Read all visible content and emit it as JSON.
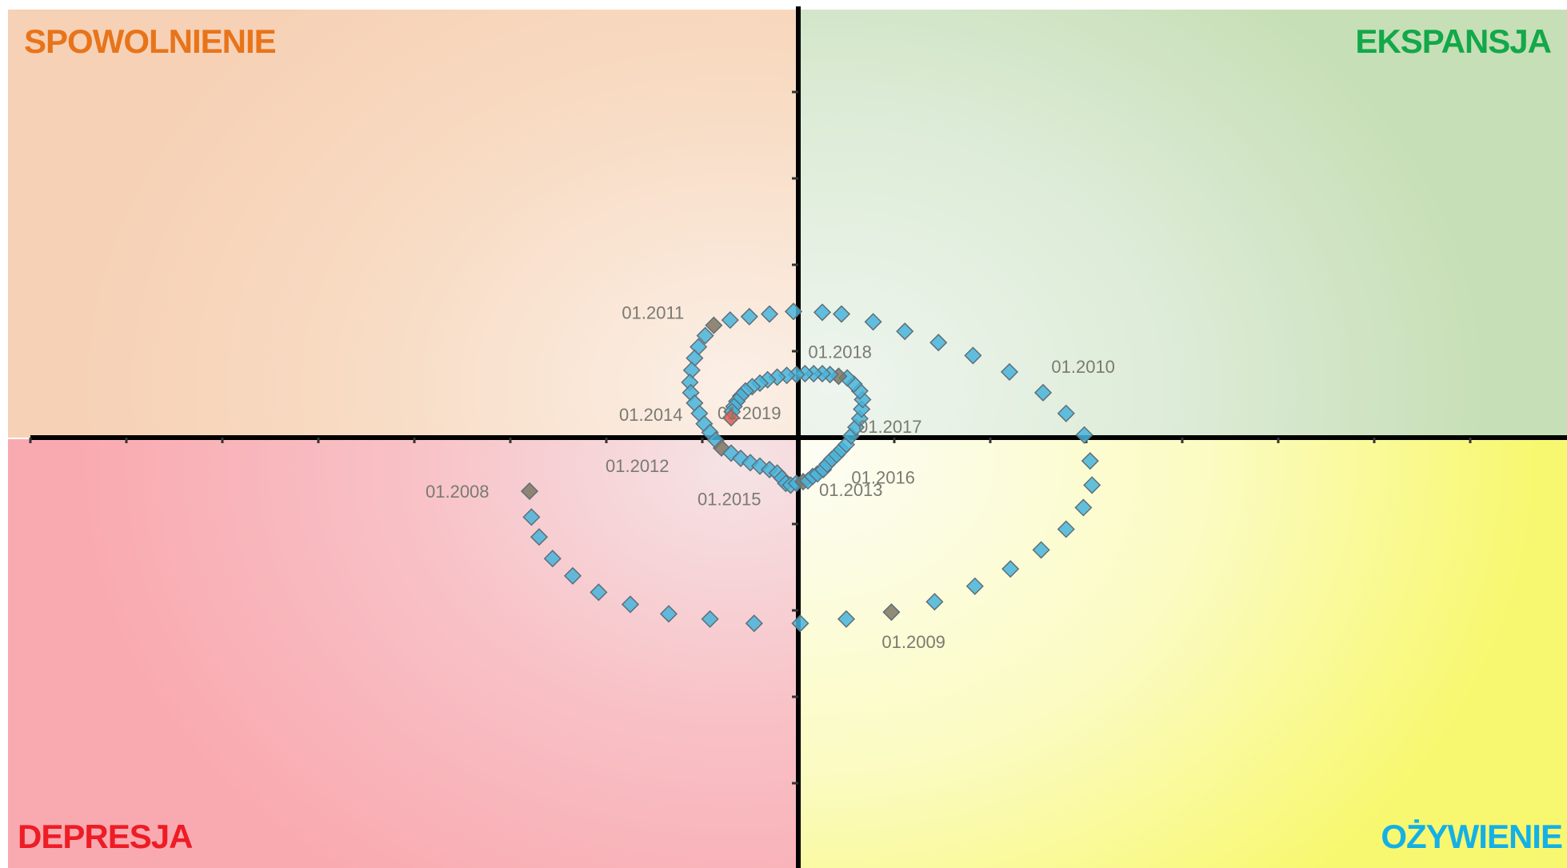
{
  "quadrants": {
    "top_left": {
      "label": "SPOWOLNIENIE",
      "color": "#e8741a"
    },
    "top_right": {
      "label": "EKSPANSJA",
      "color": "#13a84a"
    },
    "bottom_left": {
      "label": "DEPRESJA",
      "color": "#ee1c25"
    },
    "bottom_right": {
      "label": "OŻYWIENIE",
      "color": "#14b0e6"
    }
  },
  "chart_data": {
    "type": "scatter",
    "title": "",
    "xlabel": "",
    "ylabel": "",
    "xlim": [
      -8,
      8
    ],
    "ylim": [
      -4.5,
      5
    ],
    "grid": false,
    "legend": "none",
    "marker_color": "#46b4dc",
    "highlight_color": "#7e7563",
    "last_point_color": "#e25a4e",
    "series": [
      {
        "points": [
          [
            -2.8,
            -0.62
          ],
          [
            -2.78,
            -0.92
          ],
          [
            -2.7,
            -1.15
          ],
          [
            -2.56,
            -1.4
          ],
          [
            -2.35,
            -1.6
          ],
          [
            -2.08,
            -1.79
          ],
          [
            -1.75,
            -1.93
          ],
          [
            -1.35,
            -2.04
          ],
          [
            -0.92,
            -2.1
          ],
          [
            -0.46,
            -2.15
          ],
          [
            0.02,
            -2.15
          ],
          [
            0.5,
            -2.1
          ],
          [
            0.97,
            -2.02
          ],
          [
            1.42,
            -1.9
          ],
          [
            1.84,
            -1.72
          ],
          [
            2.21,
            -1.52
          ],
          [
            2.53,
            -1.3
          ],
          [
            2.79,
            -1.06
          ],
          [
            2.97,
            -0.81
          ],
          [
            3.06,
            -0.55
          ],
          [
            3.04,
            -0.27
          ],
          [
            2.98,
            0.03
          ],
          [
            2.79,
            0.28
          ],
          [
            2.55,
            0.52
          ],
          [
            2.2,
            0.76
          ],
          [
            1.82,
            0.95
          ],
          [
            1.46,
            1.1
          ],
          [
            1.11,
            1.23
          ],
          [
            0.78,
            1.34
          ],
          [
            0.45,
            1.43
          ],
          [
            0.25,
            1.45
          ],
          [
            -0.05,
            1.46
          ],
          [
            -0.3,
            1.43
          ],
          [
            -0.51,
            1.4
          ],
          [
            -0.71,
            1.36
          ],
          [
            -0.88,
            1.3
          ],
          [
            -0.97,
            1.18
          ],
          [
            -1.04,
            1.05
          ],
          [
            -1.08,
            0.92
          ],
          [
            -1.11,
            0.78
          ],
          [
            -1.13,
            0.64
          ],
          [
            -1.12,
            0.52
          ],
          [
            -1.08,
            0.4
          ],
          [
            -1.03,
            0.28
          ],
          [
            -0.98,
            0.16
          ],
          [
            -0.92,
            0.06
          ],
          [
            -0.86,
            -0.03
          ],
          [
            -0.8,
            -0.12
          ],
          [
            -0.7,
            -0.18
          ],
          [
            -0.6,
            -0.24
          ],
          [
            -0.5,
            -0.29
          ],
          [
            -0.4,
            -0.33
          ],
          [
            -0.3,
            -0.37
          ],
          [
            -0.22,
            -0.41
          ],
          [
            -0.17,
            -0.47
          ],
          [
            -0.13,
            -0.53
          ],
          [
            -0.08,
            -0.55
          ],
          [
            -0.02,
            -0.53
          ],
          [
            0.05,
            -0.51
          ],
          [
            0.1,
            -0.5
          ],
          [
            0.15,
            -0.45
          ],
          [
            0.2,
            -0.42
          ],
          [
            0.26,
            -0.37
          ],
          [
            0.3,
            -0.31
          ],
          [
            0.35,
            -0.25
          ],
          [
            0.4,
            -0.2
          ],
          [
            0.45,
            -0.14
          ],
          [
            0.5,
            -0.08
          ],
          [
            0.55,
            0.02
          ],
          [
            0.6,
            0.12
          ],
          [
            0.64,
            0.22
          ],
          [
            0.66,
            0.33
          ],
          [
            0.67,
            0.44
          ],
          [
            0.64,
            0.54
          ],
          [
            0.58,
            0.62
          ],
          [
            0.51,
            0.69
          ],
          [
            0.42,
            0.71
          ],
          [
            0.33,
            0.73
          ],
          [
            0.25,
            0.74
          ],
          [
            0.16,
            0.74
          ],
          [
            0.07,
            0.74
          ],
          [
            -0.02,
            0.73
          ],
          [
            -0.12,
            0.72
          ],
          [
            -0.22,
            0.7
          ],
          [
            -0.32,
            0.67
          ],
          [
            -0.4,
            0.63
          ],
          [
            -0.48,
            0.59
          ],
          [
            -0.55,
            0.54
          ],
          [
            -0.6,
            0.48
          ],
          [
            -0.64,
            0.42
          ],
          [
            -0.67,
            0.36
          ],
          [
            -0.69,
            0.3
          ],
          [
            -0.7,
            0.23
          ]
        ],
        "labeled_points": [
          {
            "label": "01.2008",
            "x": -2.8,
            "y": -0.62
          },
          {
            "label": "01.2009",
            "x": 0.97,
            "y": -2.02
          },
          {
            "label": "01.2010",
            "x": 2.47,
            "y": 0.73
          },
          {
            "label": "01.2011",
            "x": -0.88,
            "y": 1.3
          },
          {
            "label": "01.2012",
            "x": -0.8,
            "y": -0.12
          },
          {
            "label": "01.2013",
            "x": 0.05,
            "y": -0.51
          },
          {
            "label": "01.2014",
            "x": -0.7,
            "y": 0.23
          },
          {
            "label": "01.2015",
            "x": -0.3,
            "y": -0.45
          },
          {
            "label": "01.2016",
            "x": 0.22,
            "y": -0.33
          },
          {
            "label": "01.2017",
            "x": 0.5,
            "y": 0.15
          },
          {
            "label": "01.2018",
            "x": 0.42,
            "y": 0.71
          },
          {
            "label": "01.2019",
            "x": -0.7,
            "y": 0.23
          }
        ]
      }
    ]
  }
}
